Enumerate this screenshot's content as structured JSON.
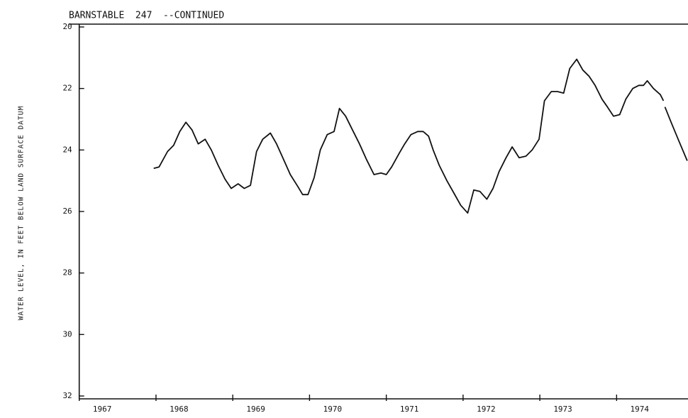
{
  "chart_data": {
    "type": "line",
    "title": "BARNSTABLE  247  --CONTINUED",
    "y_label": "WATER LEVEL, IN FEET BELOW LAND SURFACE DATUM",
    "xlim": [
      1967,
      1974.93
    ],
    "xticks": [
      {
        "value": 1967,
        "label": "1967"
      },
      {
        "value": 1968,
        "label": "1968"
      },
      {
        "value": 1969,
        "label": "1969"
      },
      {
        "value": 1970,
        "label": "1970"
      },
      {
        "value": 1971,
        "label": "1971"
      },
      {
        "value": 1972,
        "label": "1972"
      },
      {
        "value": 1973,
        "label": "1973"
      },
      {
        "value": 1974,
        "label": "1974"
      }
    ],
    "ylim": [
      20,
      32
    ],
    "y_inverted": true,
    "yticks": [
      20,
      22,
      24,
      26,
      28,
      30,
      32
    ],
    "grid": false,
    "series": [
      {
        "color": "#111111",
        "x": [
          1967.97,
          1968.04,
          1968.15,
          1968.23,
          1968.31,
          1968.39,
          1968.47,
          1968.55,
          1968.64,
          1968.72,
          1968.81,
          1968.9,
          1968.98,
          1969.07,
          1969.15,
          1969.23,
          1969.31,
          1969.39,
          1969.49,
          1969.57,
          1969.66,
          1969.75,
          1969.85,
          1969.91,
          1969.98,
          1970.06,
          1970.14,
          1970.23,
          1970.32,
          1970.39,
          1970.47,
          1970.56,
          1970.65,
          1970.74,
          1970.84,
          1970.93,
          1971.0,
          1971.07,
          1971.17,
          1971.24,
          1971.32,
          1971.41,
          1971.48,
          1971.55,
          1971.61,
          1971.69,
          1971.79,
          1971.88,
          1971.97,
          1972.06,
          1972.14,
          1972.22,
          1972.31,
          1972.39,
          1972.47,
          1972.56,
          1972.64,
          1972.73,
          1972.82,
          1972.9,
          1972.99,
          1973.06,
          1973.15,
          1973.23,
          1973.31,
          1973.39,
          1973.48,
          1973.56,
          1973.64,
          1973.72,
          1973.81,
          1973.88,
          1973.96,
          1974.04,
          1974.12,
          1974.21,
          1974.29,
          1974.35,
          1974.4,
          1974.48,
          1974.57,
          1974.61,
          1974.62,
          1974.63,
          1974.71,
          1974.81,
          1974.92
        ],
        "values": [
          24.6,
          24.55,
          24.05,
          23.85,
          23.4,
          23.1,
          23.35,
          23.8,
          23.65,
          24.0,
          24.5,
          24.95,
          25.25,
          25.1,
          25.25,
          25.15,
          24.05,
          23.65,
          23.45,
          23.8,
          24.3,
          24.8,
          25.2,
          25.45,
          25.45,
          24.9,
          24.0,
          23.5,
          23.4,
          22.65,
          22.9,
          23.35,
          23.8,
          24.3,
          24.8,
          24.75,
          24.8,
          24.55,
          24.1,
          23.8,
          23.5,
          23.4,
          23.4,
          23.55,
          24.0,
          24.5,
          25.0,
          25.4,
          25.8,
          26.05,
          25.3,
          25.35,
          25.6,
          25.25,
          24.7,
          24.25,
          23.9,
          24.25,
          24.2,
          24.0,
          23.65,
          22.4,
          22.1,
          22.1,
          22.15,
          21.35,
          21.05,
          21.4,
          21.6,
          21.9,
          22.35,
          22.6,
          22.9,
          22.85,
          22.35,
          22.0,
          21.9,
          21.9,
          21.75,
          22.0,
          22.2,
          22.4,
          null,
          22.6,
          23.1,
          23.7,
          24.35
        ]
      }
    ]
  }
}
